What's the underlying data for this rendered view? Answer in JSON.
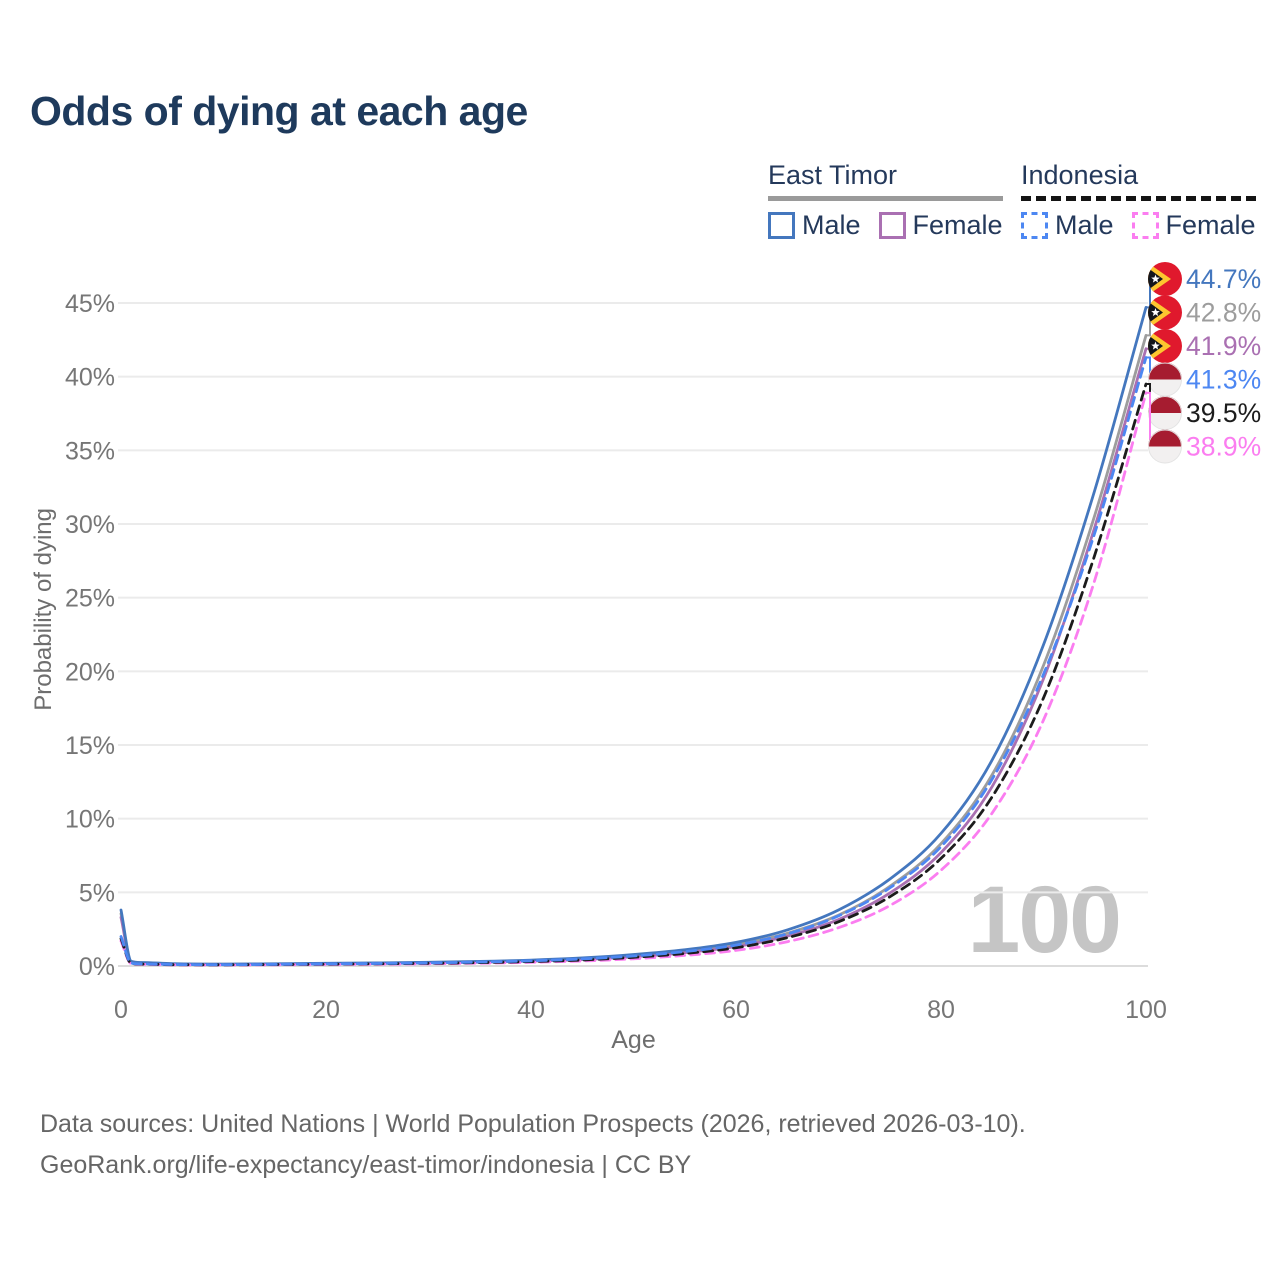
{
  "title": "Odds of dying at each age",
  "legend": {
    "groups": [
      {
        "name": "East Timor",
        "line_style": "solid",
        "line_color": "#9a9a9a",
        "items": [
          {
            "label": "Male",
            "color": "#4477be",
            "dashed": false
          },
          {
            "label": "Female",
            "color": "#aa70b2",
            "dashed": false
          }
        ]
      },
      {
        "name": "Indonesia",
        "line_style": "dashed",
        "line_color": "#141414",
        "items": [
          {
            "label": "Male",
            "color": "#4d87f2",
            "dashed": true
          },
          {
            "label": "Female",
            "color": "#fb7df0",
            "dashed": true
          }
        ]
      }
    ]
  },
  "watermark": "100",
  "footer": {
    "line1": "Data sources: United Nations | World Population Prospects (2026, retrieved 2026-03-10).",
    "line2": "GeoRank.org/life-expectancy/east-timor/indonesia | CC BY"
  },
  "chart_data": {
    "type": "line",
    "title": "Odds of dying at each age",
    "xlabel": "Age",
    "ylabel": "Probability of dying",
    "x_ticks": [
      0,
      20,
      40,
      60,
      80,
      100
    ],
    "y_ticks_percent": [
      0,
      5,
      10,
      15,
      20,
      25,
      30,
      35,
      40,
      45
    ],
    "xlim": [
      0,
      100
    ],
    "ylim_percent": [
      0,
      47
    ],
    "grid": "horizontal-only",
    "legend_position": "top-right",
    "current_age_indicator": "100",
    "ages": [
      0,
      1,
      2,
      5,
      10,
      15,
      20,
      25,
      30,
      35,
      40,
      45,
      50,
      55,
      60,
      65,
      70,
      75,
      80,
      85,
      90,
      95,
      100
    ],
    "series": [
      {
        "name": "East Timor Male",
        "color": "#4477be",
        "dashed": false,
        "flag": "east-timor",
        "end_label": "44.7%",
        "end_value_percent": 44.7,
        "values_percent": [
          3.8,
          0.32,
          0.24,
          0.16,
          0.13,
          0.15,
          0.18,
          0.21,
          0.25,
          0.31,
          0.4,
          0.55,
          0.78,
          1.1,
          1.6,
          2.45,
          3.8,
          5.9,
          9.0,
          14.0,
          21.8,
          32.3,
          44.7
        ]
      },
      {
        "name": "East Timor Both sexes",
        "color": "#9d9d9d",
        "dashed": false,
        "flag": "east-timor",
        "end_label": "42.8%",
        "end_value_percent": 42.8,
        "values_percent": [
          3.55,
          0.29,
          0.22,
          0.14,
          0.12,
          0.13,
          0.16,
          0.19,
          0.23,
          0.28,
          0.36,
          0.49,
          0.7,
          1.0,
          1.45,
          2.22,
          3.45,
          5.4,
          8.3,
          13.0,
          20.4,
          30.6,
          42.8
        ]
      },
      {
        "name": "East Timor Female",
        "color": "#aa70b2",
        "dashed": false,
        "flag": "east-timor",
        "end_label": "41.9%",
        "end_value_percent": 41.9,
        "values_percent": [
          3.3,
          0.26,
          0.2,
          0.13,
          0.11,
          0.12,
          0.14,
          0.17,
          0.21,
          0.26,
          0.33,
          0.44,
          0.63,
          0.9,
          1.32,
          2.02,
          3.15,
          4.95,
          7.7,
          12.2,
          19.5,
          29.8,
          41.9
        ]
      },
      {
        "name": "Indonesia Male",
        "color": "#4d87f2",
        "dashed": true,
        "flag": "indonesia",
        "end_label": "41.3%",
        "end_value_percent": 41.3,
        "values_percent": [
          2.0,
          0.19,
          0.14,
          0.1,
          0.09,
          0.11,
          0.14,
          0.17,
          0.21,
          0.27,
          0.35,
          0.48,
          0.68,
          0.98,
          1.42,
          2.18,
          3.4,
          5.3,
          8.1,
          12.7,
          19.8,
          29.4,
          41.3
        ]
      },
      {
        "name": "Indonesia Both sexes",
        "color": "#1c1c1c",
        "dashed": true,
        "flag": "indonesia",
        "end_label": "39.5%",
        "end_value_percent": 39.5,
        "values_percent": [
          1.85,
          0.17,
          0.13,
          0.09,
          0.08,
          0.1,
          0.12,
          0.15,
          0.18,
          0.23,
          0.3,
          0.41,
          0.59,
          0.85,
          1.24,
          1.92,
          3.0,
          4.7,
          7.3,
          11.5,
          18.2,
          27.9,
          39.5
        ]
      },
      {
        "name": "Indonesia Female",
        "color": "#fb7df0",
        "dashed": true,
        "flag": "indonesia",
        "end_label": "38.9%",
        "end_value_percent": 38.9,
        "values_percent": [
          1.7,
          0.15,
          0.11,
          0.08,
          0.07,
          0.08,
          0.1,
          0.12,
          0.15,
          0.19,
          0.25,
          0.34,
          0.49,
          0.72,
          1.06,
          1.65,
          2.6,
          4.1,
          6.5,
          10.4,
          16.7,
          26.2,
          38.9
        ]
      }
    ]
  }
}
